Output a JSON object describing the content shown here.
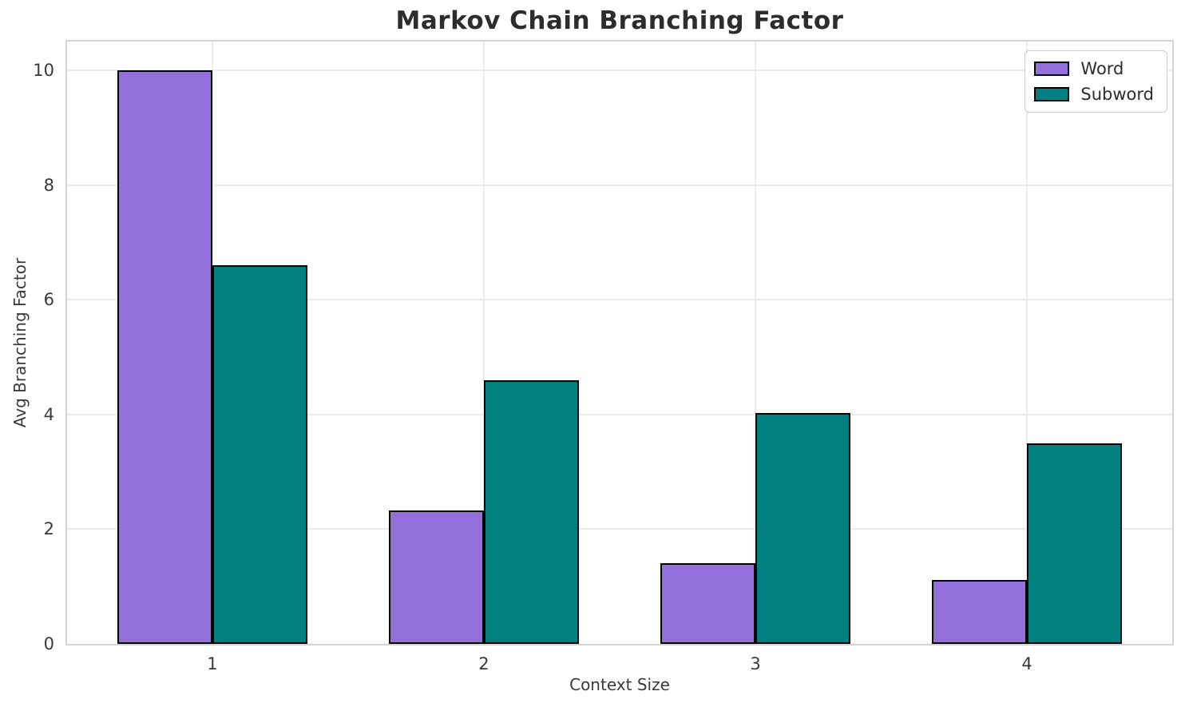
{
  "chart_data": {
    "type": "bar",
    "title": "Markov Chain Branching Factor",
    "xlabel": "Context Size",
    "ylabel": "Avg Branching Factor",
    "categories": [
      "1",
      "2",
      "3",
      "4"
    ],
    "series": [
      {
        "name": "Word",
        "color": "#9370DB",
        "values": [
          10.0,
          2.33,
          1.4,
          1.12
        ]
      },
      {
        "name": "Subword",
        "color": "#008080",
        "values": [
          6.6,
          4.6,
          4.02,
          3.5
        ]
      }
    ],
    "y_ticks": [
      0,
      2,
      4,
      6,
      8,
      10
    ],
    "ylim": [
      0,
      10.5
    ],
    "xlim": [
      0.465,
      4.535
    ],
    "bar_width": 0.35,
    "bar_edge_color": "#000000",
    "grid": true,
    "grid_color": "#ebebeb",
    "spine_color": "#d4d4d4",
    "text_color": "#3a3a3a",
    "title_color": "#2d2d2d",
    "legend_position": "upper right"
  }
}
